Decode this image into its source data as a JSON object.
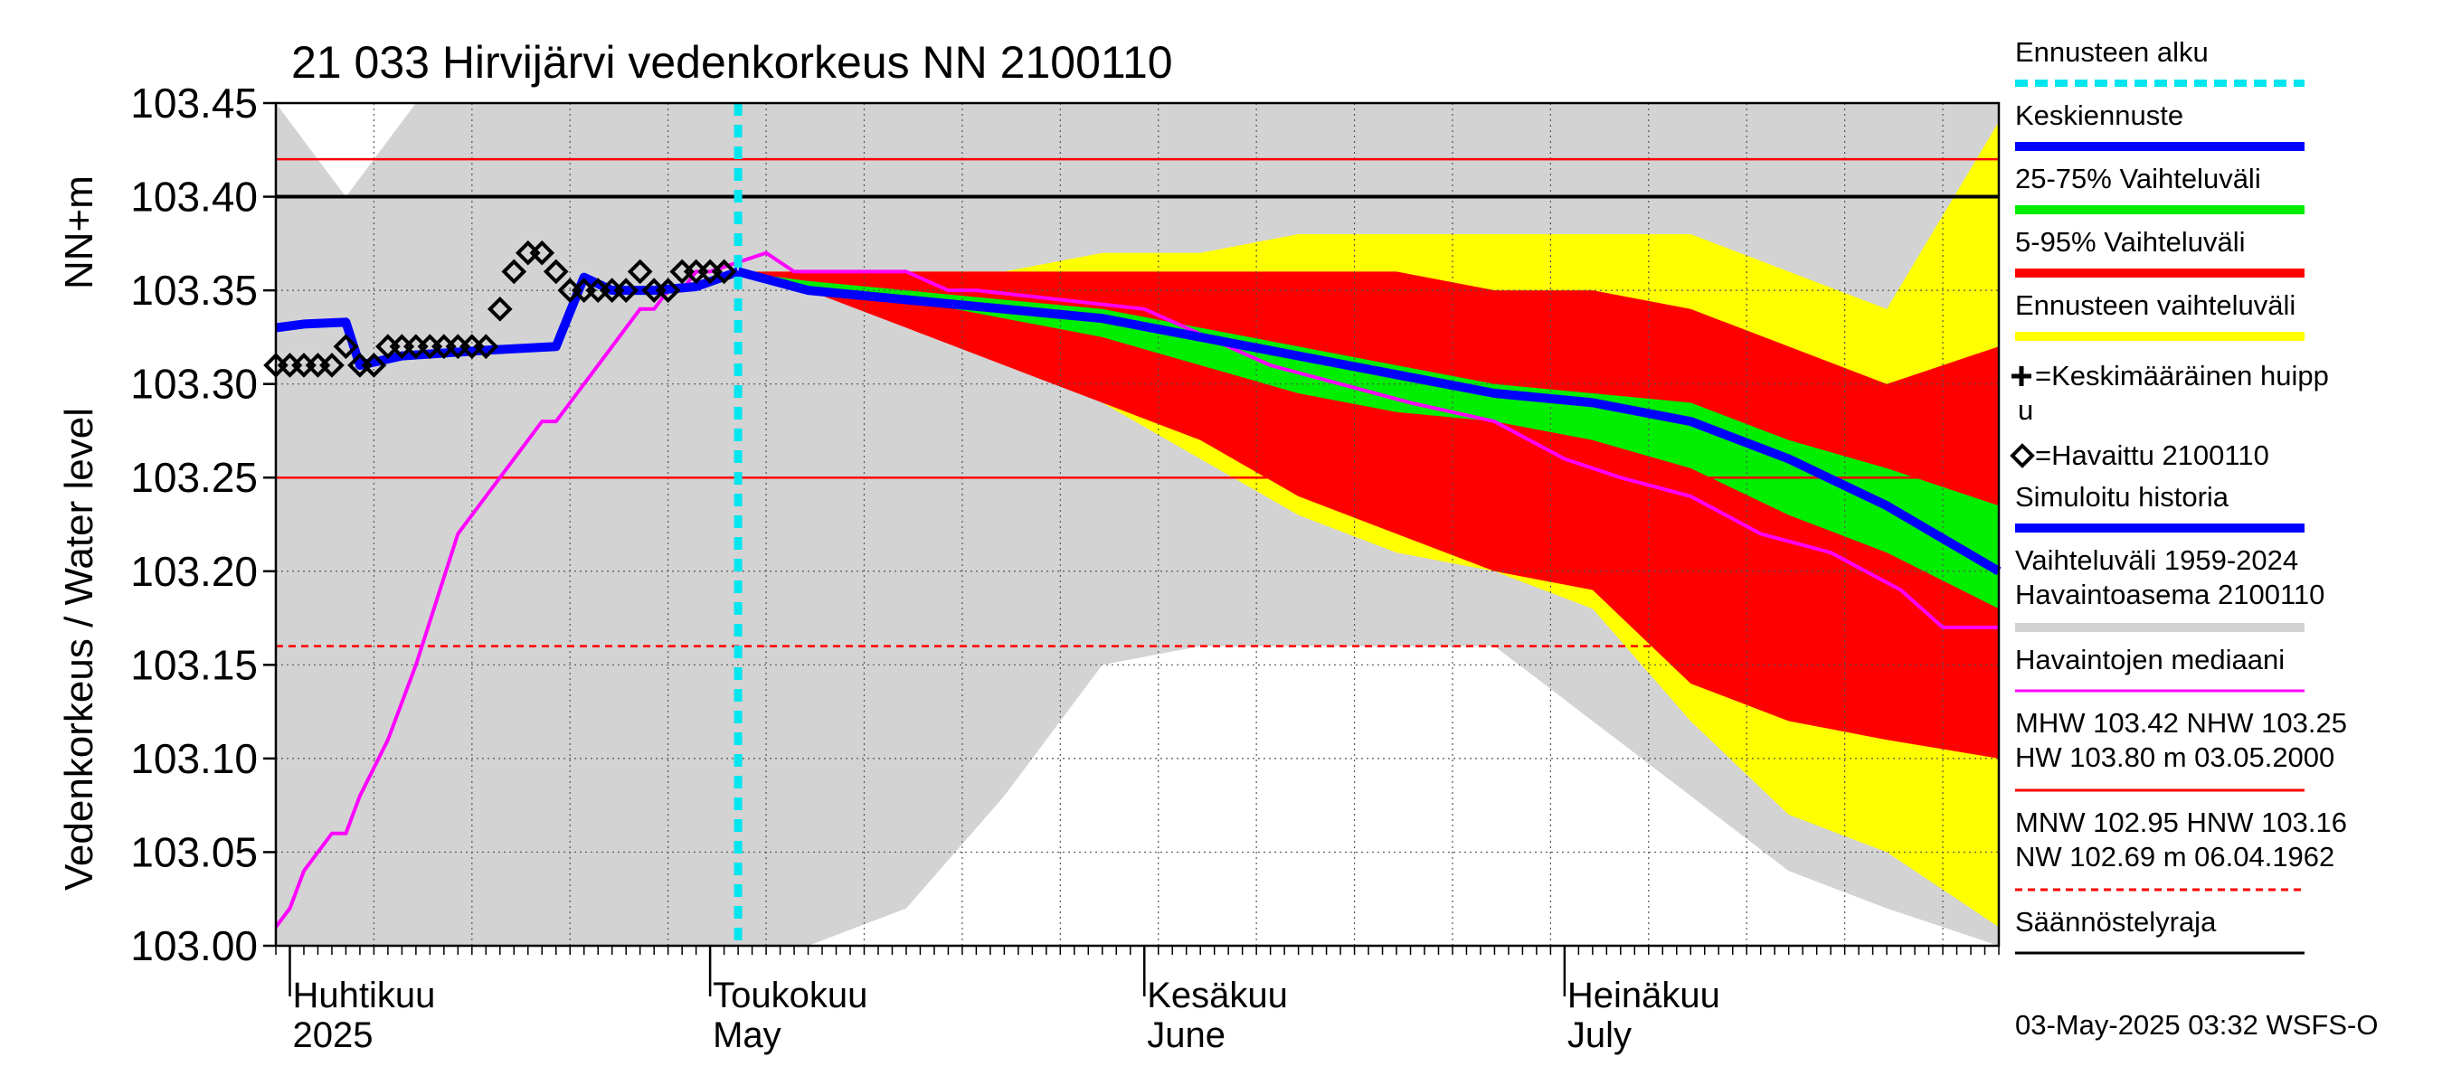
{
  "chart_data": {
    "type": "area",
    "title": "21 033 Hirvijärvi vedenkorkeus NN 2100110",
    "ylabel_top": "NN+m",
    "ylabel": "Vedenkorkeus / Water level",
    "ylim": [
      103.0,
      103.45
    ],
    "yticks": [
      "103.00",
      "103.05",
      "103.10",
      "103.15",
      "103.20",
      "103.25",
      "103.30",
      "103.35",
      "103.40",
      "103.45"
    ],
    "x_start": "2025-03-31",
    "x_end": "2025-08-01",
    "months": [
      {
        "date": "2025-04-01",
        "fi": "Huhtikuu",
        "en": "2025"
      },
      {
        "date": "2025-05-01",
        "fi": "Toukokuu",
        "en": "May"
      },
      {
        "date": "2025-06-01",
        "fi": "Kesäkuu",
        "en": "June"
      },
      {
        "date": "2025-07-01",
        "fi": "Heinäkuu",
        "en": "July"
      }
    ],
    "forecast_start": "2025-05-03",
    "reference_lines": [
      {
        "name": "MHW",
        "value": 103.42,
        "style": "red-solid"
      },
      {
        "name": "NHW",
        "value": 103.25,
        "style": "red-solid"
      },
      {
        "name": "HNW",
        "value": 103.16,
        "style": "red-dashed"
      },
      {
        "name": "Säännöstelyraja",
        "value": 103.4,
        "style": "black-solid"
      }
    ],
    "x_dates": [
      "2025-03-31",
      "2025-04-05",
      "2025-04-10",
      "2025-04-15",
      "2025-04-20",
      "2025-04-25",
      "2025-04-30",
      "2025-05-03",
      "2025-05-08",
      "2025-05-15",
      "2025-05-22",
      "2025-05-29",
      "2025-06-05",
      "2025-06-12",
      "2025-06-19",
      "2025-06-26",
      "2025-07-03",
      "2025-07-10",
      "2025-07-17",
      "2025-07-24",
      "2025-08-01"
    ],
    "history_range_upper": [
      103.45,
      103.4,
      103.45,
      103.45,
      103.45,
      103.45,
      103.45,
      103.45,
      103.45,
      103.45,
      103.45,
      103.45,
      103.45,
      103.45,
      103.45,
      103.45,
      103.45,
      103.45,
      103.45,
      103.45,
      103.45
    ],
    "history_range_lower": [
      103.0,
      103.0,
      103.0,
      103.0,
      103.0,
      103.0,
      103.0,
      103.0,
      103.0,
      103.02,
      103.08,
      103.15,
      103.16,
      103.16,
      103.16,
      103.16,
      103.12,
      103.08,
      103.04,
      103.02,
      103.0
    ],
    "forecast_dates": [
      "2025-05-03",
      "2025-05-08",
      "2025-05-15",
      "2025-05-22",
      "2025-05-29",
      "2025-06-05",
      "2025-06-12",
      "2025-06-19",
      "2025-06-26",
      "2025-07-03",
      "2025-07-10",
      "2025-07-17",
      "2025-07-24",
      "2025-08-01"
    ],
    "ennuste_upper": [
      103.36,
      103.36,
      103.36,
      103.36,
      103.37,
      103.37,
      103.38,
      103.38,
      103.38,
      103.38,
      103.38,
      103.36,
      103.34,
      103.44
    ],
    "ennuste_lower": [
      103.36,
      103.35,
      103.34,
      103.32,
      103.29,
      103.26,
      103.23,
      103.21,
      103.2,
      103.18,
      103.12,
      103.07,
      103.05,
      103.01
    ],
    "p5_95_upper": [
      103.36,
      103.36,
      103.36,
      103.36,
      103.36,
      103.36,
      103.36,
      103.36,
      103.35,
      103.35,
      103.34,
      103.32,
      103.3,
      103.32
    ],
    "p5_95_lower": [
      103.36,
      103.35,
      103.33,
      103.31,
      103.29,
      103.27,
      103.24,
      103.22,
      103.2,
      103.19,
      103.14,
      103.12,
      103.11,
      103.1
    ],
    "p25_75_upper": [
      103.36,
      103.355,
      103.35,
      103.345,
      103.34,
      103.33,
      103.32,
      103.31,
      103.3,
      103.295,
      103.29,
      103.27,
      103.255,
      103.235
    ],
    "p25_75_lower": [
      103.36,
      103.35,
      103.345,
      103.335,
      103.325,
      103.31,
      103.295,
      103.285,
      103.28,
      103.27,
      103.255,
      103.23,
      103.21,
      103.18
    ],
    "keskiennuste": [
      103.36,
      103.35,
      103.345,
      103.34,
      103.335,
      103.325,
      103.315,
      103.305,
      103.295,
      103.29,
      103.28,
      103.26,
      103.235,
      103.2
    ],
    "simuloitu_dates": [
      "2025-03-31",
      "2025-04-02",
      "2025-04-05",
      "2025-04-06",
      "2025-04-09",
      "2025-04-15",
      "2025-04-20",
      "2025-04-22",
      "2025-04-24",
      "2025-04-27",
      "2025-04-30",
      "2025-05-03"
    ],
    "simuloitu_values": [
      103.33,
      103.332,
      103.333,
      103.31,
      103.315,
      103.318,
      103.32,
      103.357,
      103.35,
      103.35,
      103.352,
      103.36
    ],
    "havaittu_dates": [
      "2025-03-31",
      "2025-04-01",
      "2025-04-02",
      "2025-04-03",
      "2025-04-04",
      "2025-04-05",
      "2025-04-06",
      "2025-04-07",
      "2025-04-08",
      "2025-04-09",
      "2025-04-10",
      "2025-04-11",
      "2025-04-12",
      "2025-04-13",
      "2025-04-14",
      "2025-04-15",
      "2025-04-16",
      "2025-04-17",
      "2025-04-18",
      "2025-04-19",
      "2025-04-20",
      "2025-04-21",
      "2025-04-22",
      "2025-04-23",
      "2025-04-24",
      "2025-04-25",
      "2025-04-26",
      "2025-04-27",
      "2025-04-28",
      "2025-04-29",
      "2025-04-30",
      "2025-05-01",
      "2025-05-02"
    ],
    "havaittu_values": [
      103.31,
      103.31,
      103.31,
      103.31,
      103.31,
      103.32,
      103.31,
      103.31,
      103.32,
      103.32,
      103.32,
      103.32,
      103.32,
      103.32,
      103.32,
      103.32,
      103.34,
      103.36,
      103.37,
      103.37,
      103.36,
      103.35,
      103.35,
      103.35,
      103.35,
      103.35,
      103.36,
      103.35,
      103.35,
      103.36,
      103.36,
      103.36,
      103.36
    ],
    "median_dates": [
      "2025-03-31",
      "2025-04-01",
      "2025-04-02",
      "2025-04-04",
      "2025-04-05",
      "2025-04-06",
      "2025-04-08",
      "2025-04-10",
      "2025-04-13",
      "2025-04-15",
      "2025-04-16",
      "2025-04-17",
      "2025-04-19",
      "2025-04-20",
      "2025-04-22",
      "2025-04-23",
      "2025-04-26",
      "2025-04-27",
      "2025-04-28",
      "2025-04-29",
      "2025-04-30",
      "2025-05-01",
      "2025-05-05",
      "2025-05-07",
      "2025-05-15",
      "2025-05-18",
      "2025-05-20",
      "2025-06-01",
      "2025-06-10",
      "2025-06-20",
      "2025-06-26",
      "2025-07-01",
      "2025-07-05",
      "2025-07-10",
      "2025-07-15",
      "2025-07-20",
      "2025-07-25",
      "2025-07-28",
      "2025-08-01"
    ],
    "median_values": [
      103.01,
      103.02,
      103.04,
      103.06,
      103.06,
      103.08,
      103.11,
      103.15,
      103.22,
      103.24,
      103.25,
      103.26,
      103.28,
      103.28,
      103.3,
      103.31,
      103.34,
      103.34,
      103.35,
      103.35,
      103.36,
      103.36,
      103.37,
      103.36,
      103.36,
      103.35,
      103.35,
      103.34,
      103.31,
      103.29,
      103.28,
      103.26,
      103.25,
      103.24,
      103.22,
      103.21,
      103.19,
      103.17,
      103.17
    ],
    "legend": [
      {
        "label": "Ennusteen alku",
        "color": "#00e5ee",
        "kind": "dashed"
      },
      {
        "label": "Keskiennuste",
        "color": "#0000ff",
        "kind": "thick"
      },
      {
        "label": "25-75% Vaihteluväli",
        "color": "#00ee00",
        "kind": "thick"
      },
      {
        "label": "5-95% Vaihteluväli",
        "color": "#ff0000",
        "kind": "thick"
      },
      {
        "label": "Ennusteen vaihteluväli",
        "color": "#ffff00",
        "kind": "thick"
      },
      {
        "label": "=Keskimääräinen huipp",
        "label2": "u",
        "kind": "plus"
      },
      {
        "label": "=Havaittu 2100110",
        "kind": "diamond"
      },
      {
        "label": "Simuloitu historia",
        "color": "#0000ff",
        "kind": "thick"
      },
      {
        "label": "Vaihteluväli 1959-2024",
        "label2": " Havaintoasema 2100110",
        "color": "#d3d3d3",
        "kind": "thick2"
      },
      {
        "label": "Havaintojen mediaani",
        "color": "#ff00ff",
        "kind": "thin"
      },
      {
        "label": "MHW 103.42 NHW 103.25",
        "label2": "HW 103.80 m 03.05.2000",
        "color": "#ff0000",
        "kind": "thin2"
      },
      {
        "label": "MNW 102.95 HNW 103.16",
        "label2": "NW 102.69 m 06.04.1962",
        "color": "#ff0000",
        "kind": "dashed2"
      },
      {
        "label": "Säännöstelyraja",
        "color": "#000000",
        "kind": "thin"
      }
    ],
    "colors": {
      "history": "#d3d3d3",
      "ennuste": "#ffff00",
      "p5_95": "#ff0000",
      "p25_75": "#00ee00",
      "keskiennuste": "#0000ff",
      "median": "#ff00ff",
      "forecast_start": "#00e5ee"
    },
    "footer": "03-May-2025 03:32 WSFS-O"
  }
}
